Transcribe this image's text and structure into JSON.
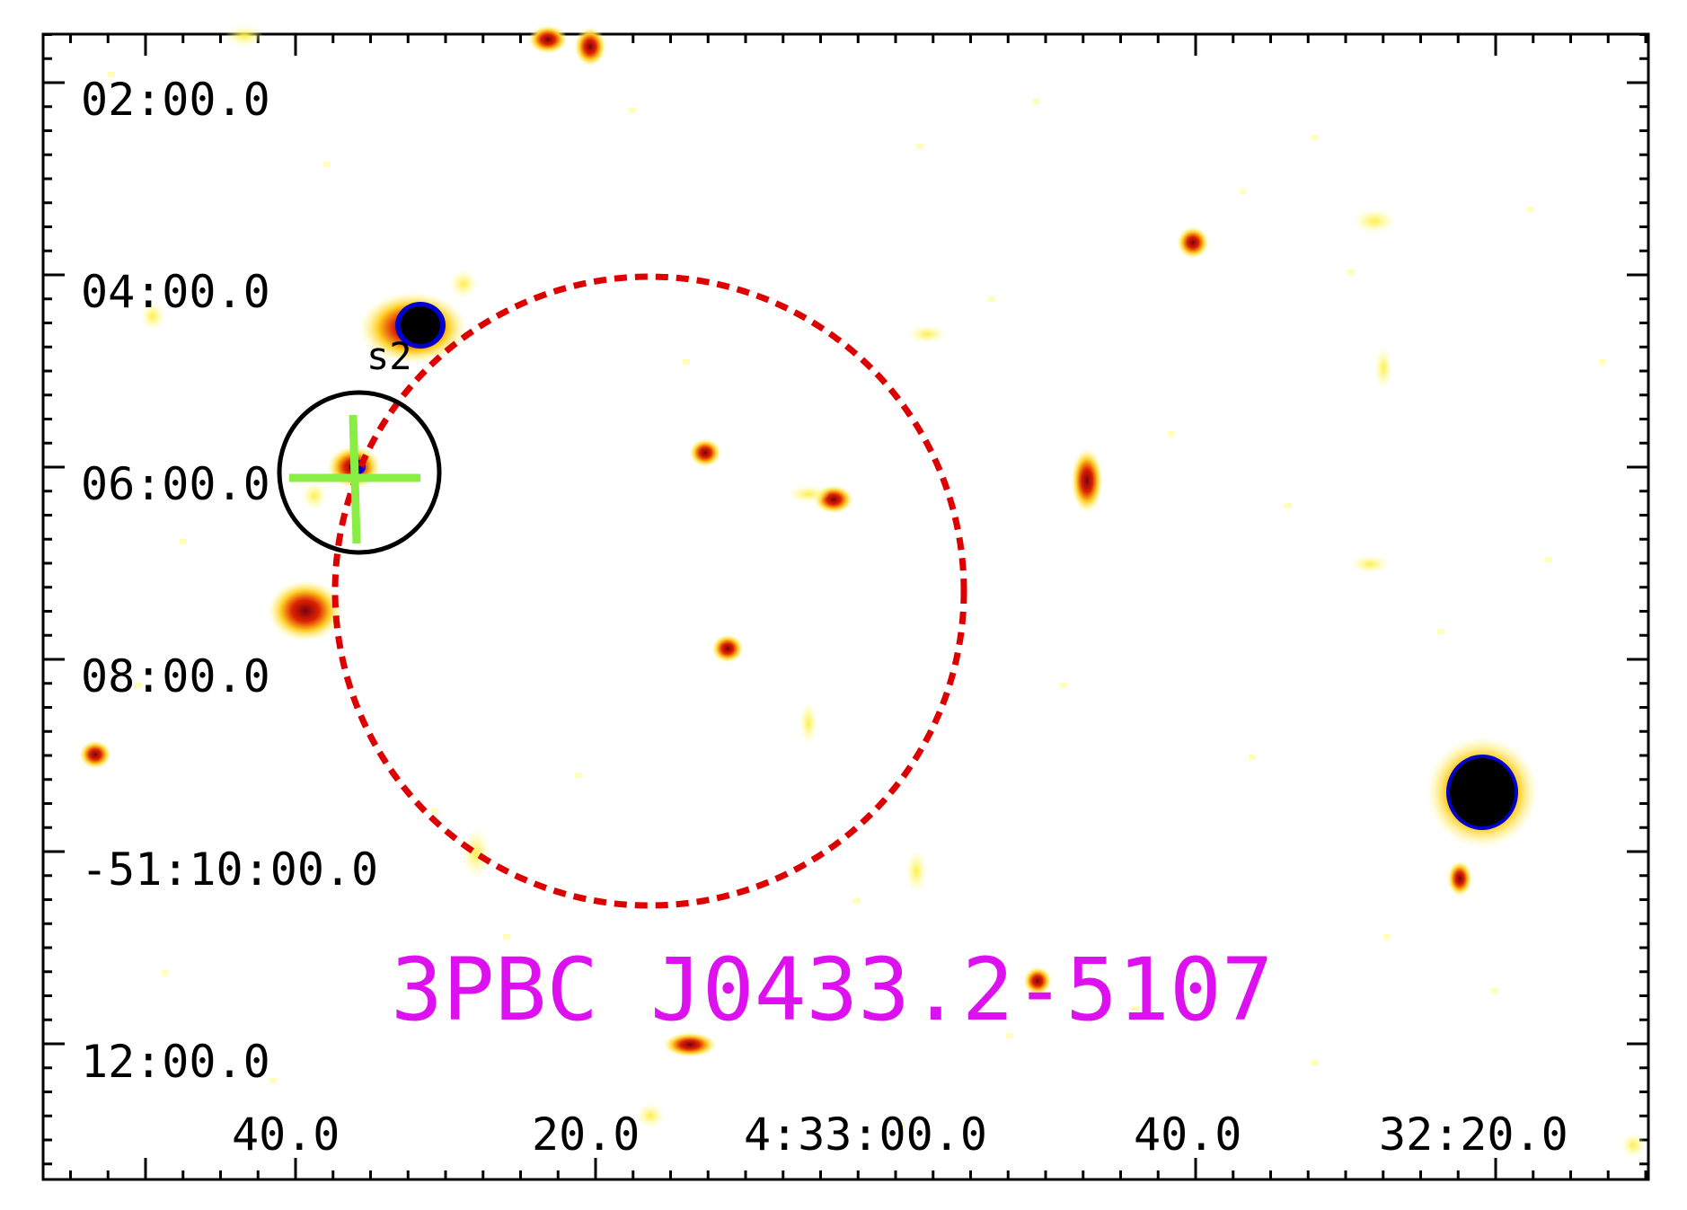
{
  "title": "3PBC J0433.2-5107",
  "dec_labels": [
    "02:00.0",
    "04:00.0",
    "06:00.0",
    "08:00.0",
    "-51:10:00.0",
    "12:00.0"
  ],
  "ra_labels": [
    "40.0",
    "20.0",
    "4:33:00.0",
    "40.0",
    "32:20.0"
  ],
  "source_label": "s2",
  "colors": {
    "title": "#dd10f0",
    "error_ellipse": "#dd0000",
    "crosshair": "#88ee44",
    "marker_circle": "#000000",
    "source_halo": "#ffff99",
    "source_mid": "#ffdd33",
    "source_core": "#dd2200",
    "source_peak": "#000000",
    "source_rim": "#0000cc"
  },
  "icons": {
    "crosshair": "crosshair-icon",
    "marker": "circle-marker"
  }
}
